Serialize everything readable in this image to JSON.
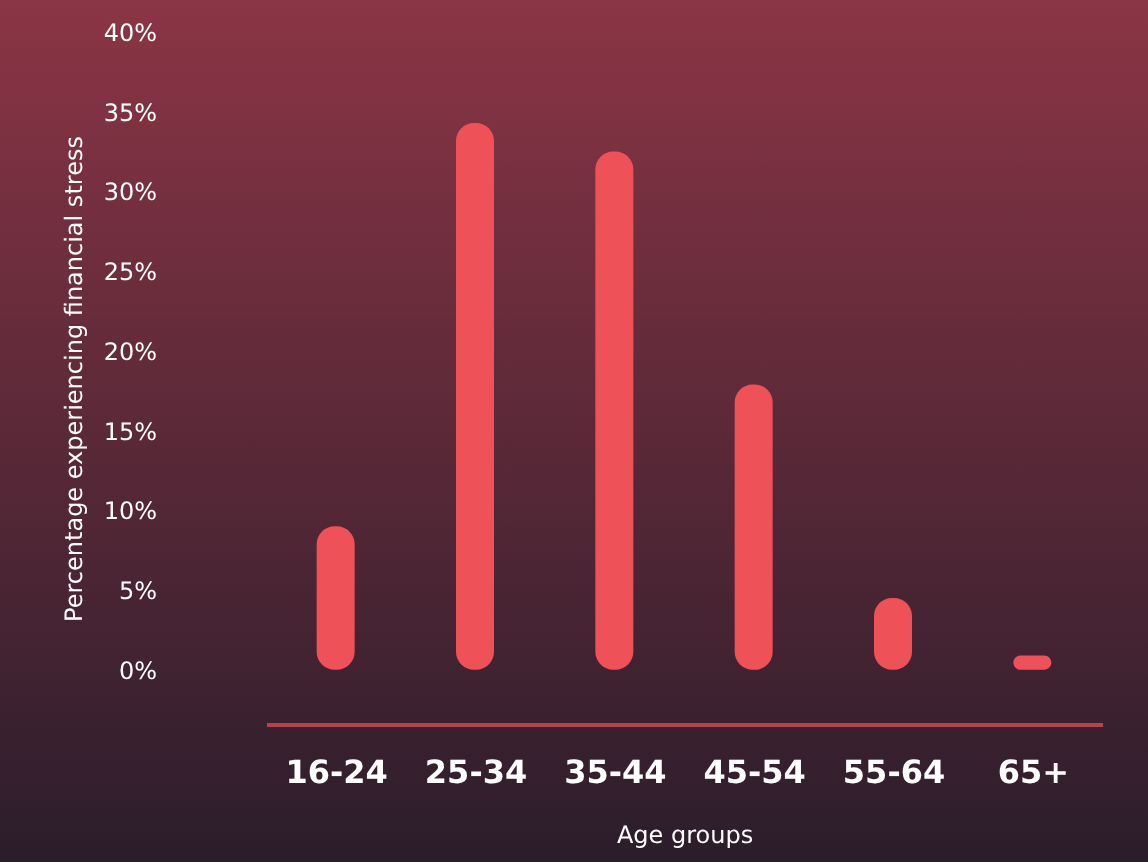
{
  "chart_data": {
    "type": "bar",
    "xlabel": "Age groups",
    "ylabel": "Percentage experiencing financial stress",
    "categories": [
      "16-24",
      "25-34",
      "35-44",
      "45-54",
      "55-64",
      "65+"
    ],
    "values": [
      9.0,
      34.3,
      32.5,
      17.9,
      4.5,
      0.9
    ],
    "color": "#ef5159",
    "ylim": [
      -3.4,
      40
    ],
    "yticks": [
      {
        "value": 0,
        "label": "0%"
      },
      {
        "value": 5,
        "label": "5%"
      },
      {
        "value": 10,
        "label": "10%"
      },
      {
        "value": 15,
        "label": "15%"
      },
      {
        "value": 20,
        "label": "20%"
      },
      {
        "value": 25,
        "label": "25%"
      },
      {
        "value": 30,
        "label": "30%"
      },
      {
        "value": 35,
        "label": "35%"
      },
      {
        "value": 40,
        "label": "40%"
      }
    ],
    "grid": false
  }
}
